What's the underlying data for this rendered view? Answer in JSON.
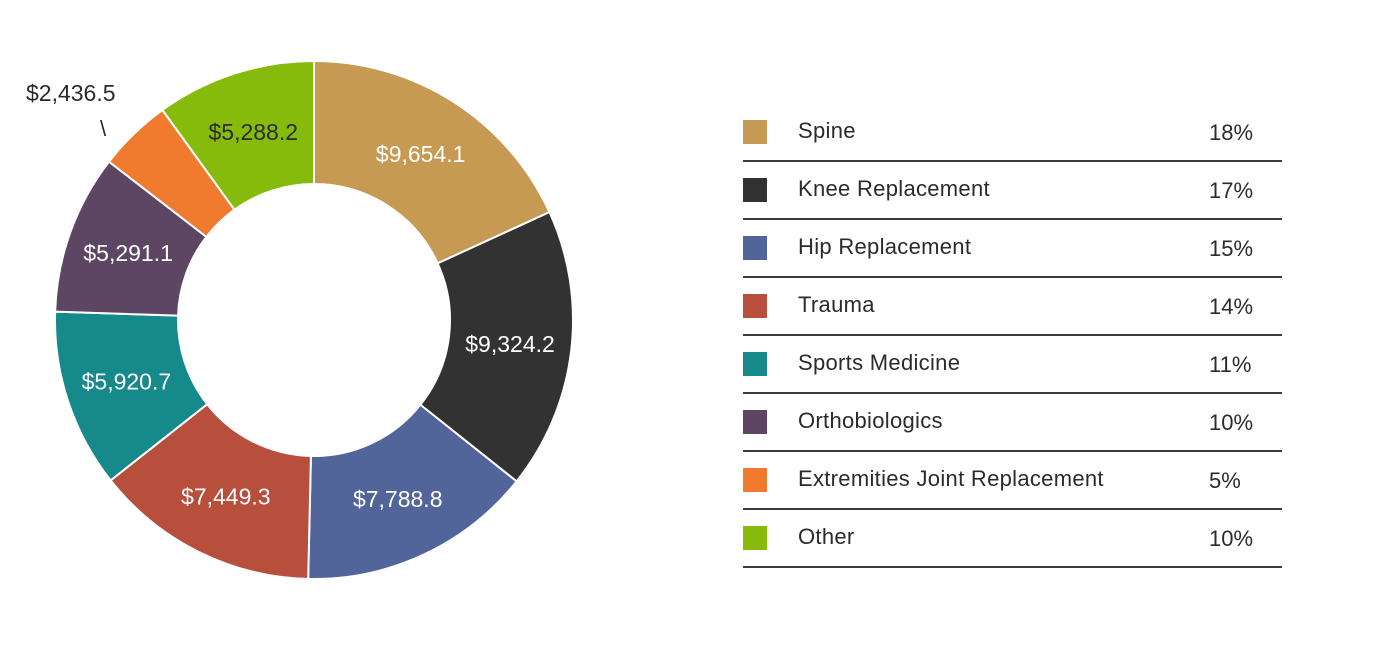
{
  "chart_data": {
    "type": "pie",
    "donut": true,
    "title": "",
    "slices": [
      {
        "name": "Spine",
        "value": 9654.1,
        "label": "$9,654.1",
        "percent_label": "18%",
        "color": "#C69A52",
        "text_color": "#ffffff"
      },
      {
        "name": "Knee Replacement",
        "value": 9324.2,
        "label": "$9,324.2",
        "percent_label": "17%",
        "color": "#323232",
        "text_color": "#ffffff"
      },
      {
        "name": "Hip Replacement",
        "value": 7788.8,
        "label": "$7,788.8",
        "percent_label": "15%",
        "color": "#51659B",
        "text_color": "#ffffff"
      },
      {
        "name": "Trauma",
        "value": 7449.3,
        "label": "$7,449.3",
        "percent_label": "14%",
        "color": "#B84E3C",
        "text_color": "#ffffff"
      },
      {
        "name": "Sports Medicine",
        "value": 5920.7,
        "label": "$5,920.7",
        "percent_label": "11%",
        "color": "#16898A",
        "text_color": "#ffffff"
      },
      {
        "name": "Orthobiologics",
        "value": 5291.1,
        "label": "$5,291.1",
        "percent_label": "10%",
        "color": "#5C4664",
        "text_color": "#ffffff"
      },
      {
        "name": "Extremities Joint Replacement",
        "value": 2436.5,
        "label": "$2,436.5",
        "percent_label": "5%",
        "color": "#F07A2E",
        "text_color": "#2b2b2b",
        "label_outside": true
      },
      {
        "name": "Other",
        "value": 5288.2,
        "label": "$5,288.2",
        "percent_label": "10%",
        "color": "#86BB0C",
        "text_color": "#2b2b2b"
      }
    ],
    "leader_glyph": "\\",
    "legend_position": "right"
  }
}
